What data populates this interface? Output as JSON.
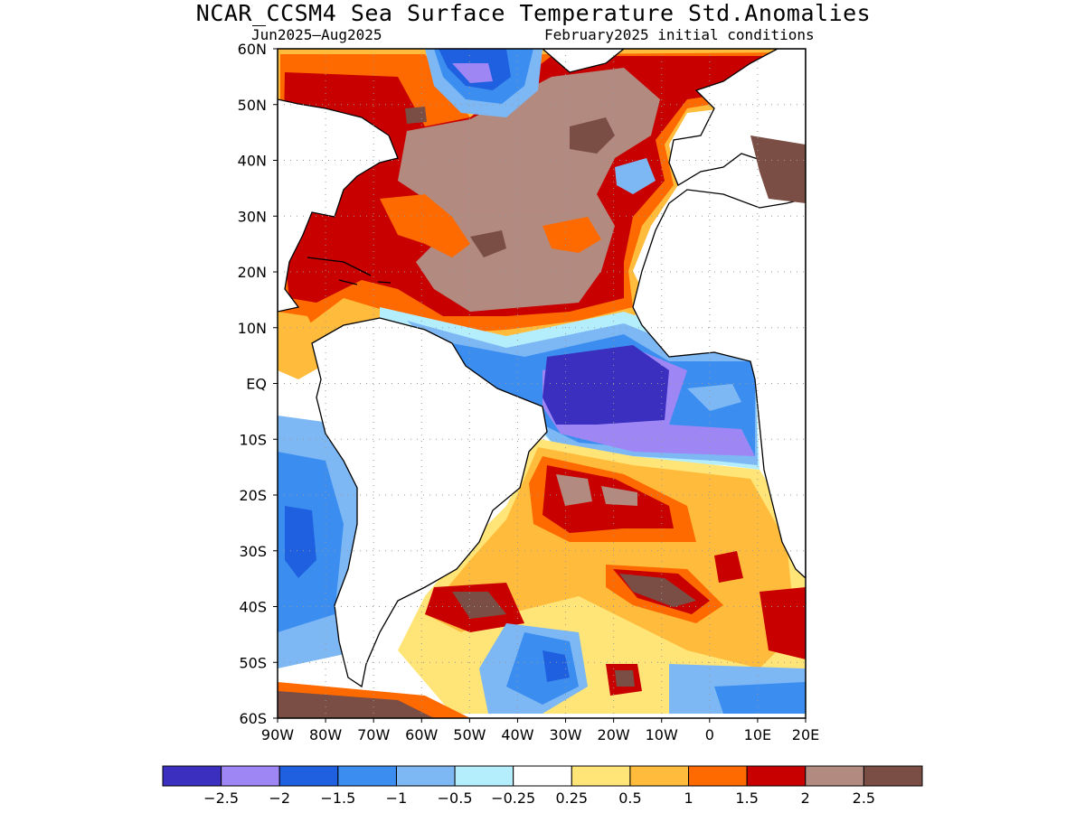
{
  "figure": {
    "title": "NCAR_CCSM4 Sea Surface Temperature Std.Anomalies",
    "subtitle_left": "Jun2025–Aug2025",
    "subtitle_right": "February2025 initial conditions"
  },
  "map": {
    "lat_labels": [
      "60N",
      "50N",
      "40N",
      "30N",
      "20N",
      "10N",
      "EQ",
      "10S",
      "20S",
      "30S",
      "40S",
      "50S",
      "60S"
    ],
    "lon_labels": [
      "90W",
      "80W",
      "70W",
      "60W",
      "50W",
      "40W",
      "30W",
      "20W",
      "10W",
      "0",
      "10E",
      "20E"
    ],
    "grid": "dotted"
  },
  "colorbar": {
    "colors": [
      "#3a2fbe",
      "#9f86f5",
      "#1f60e0",
      "#3b8ef0",
      "#7db8f5",
      "#b4edfb",
      "#ffffff",
      "#ffe577",
      "#ffbc3c",
      "#ff6a00",
      "#c80000",
      "#b28a80",
      "#7a4e44"
    ],
    "labels": [
      "−2.5",
      "−2",
      "−1.5",
      "−1",
      "−0.5",
      "−0.25",
      "0.25",
      "0.5",
      "1",
      "1.5",
      "2",
      "2.5"
    ]
  },
  "colors": {
    "land": "#ffffff",
    "coast": "#000000",
    "grid": "#999999"
  }
}
